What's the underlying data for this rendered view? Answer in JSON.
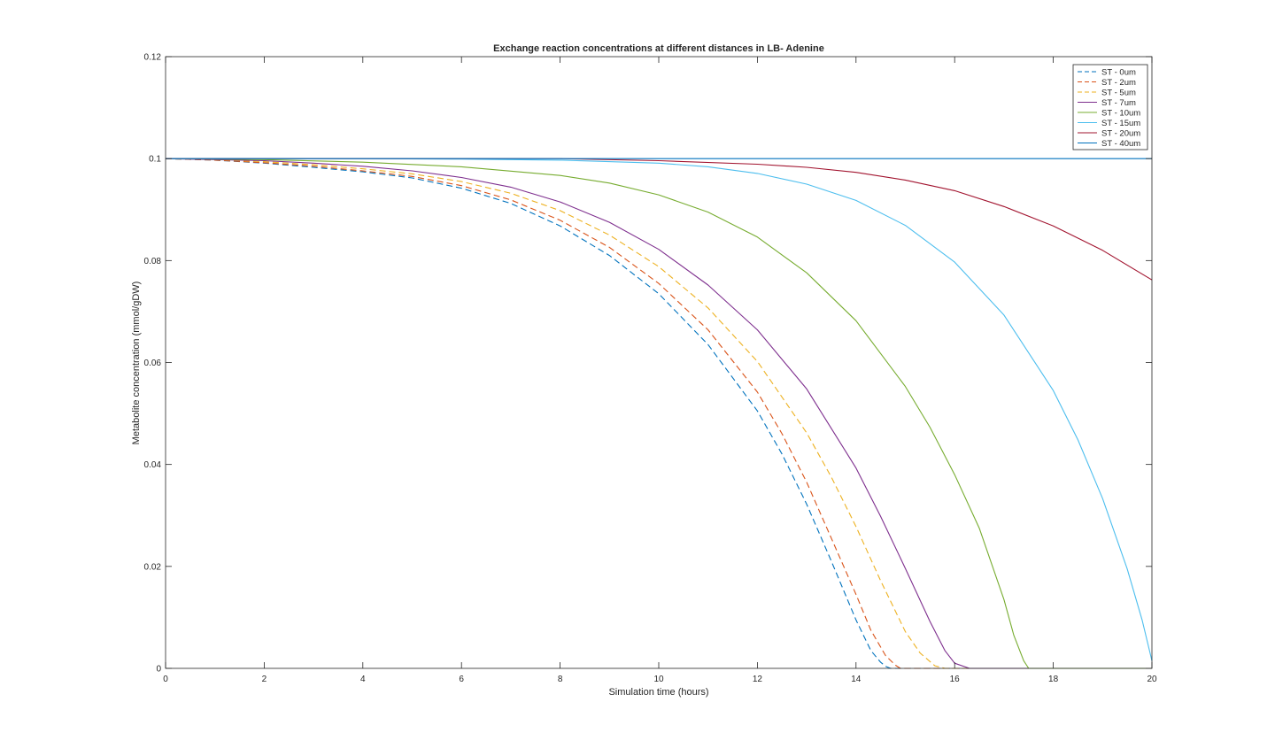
{
  "chart_data": {
    "type": "line",
    "title": "Exchange reaction concentrations at different distances in LB- Adenine",
    "xlabel": "Simulation time (hours)",
    "ylabel": "Metabolite concentration (mmol/gDW)",
    "xlim": [
      0,
      20
    ],
    "ylim": [
      0,
      0.12
    ],
    "xticks": [
      0,
      2,
      4,
      6,
      8,
      10,
      12,
      14,
      16,
      18,
      20
    ],
    "yticks": [
      0,
      0.02,
      0.04,
      0.06,
      0.08,
      0.1,
      0.12
    ],
    "xtick_labels": [
      "0",
      "2",
      "4",
      "6",
      "8",
      "10",
      "12",
      "14",
      "16",
      "18",
      "20"
    ],
    "ytick_labels": [
      "0",
      "0.02",
      "0.04",
      "0.06",
      "0.08",
      "0.1",
      "0.12"
    ],
    "grid": false,
    "legend_position": "top-right",
    "series": [
      {
        "name": "ST - 0um",
        "color": "#0072BD",
        "dash": "dashed",
        "x": [
          0,
          1,
          2,
          3,
          4,
          5,
          6,
          7,
          8,
          9,
          10,
          11,
          12,
          12.5,
          13,
          13.5,
          14,
          14.3,
          14.5,
          14.6,
          14.7,
          20
        ],
        "y": [
          0.1,
          0.0997,
          0.0991,
          0.0983,
          0.0974,
          0.0962,
          0.0942,
          0.0912,
          0.0868,
          0.081,
          0.0735,
          0.0635,
          0.0505,
          0.042,
          0.0322,
          0.021,
          0.0095,
          0.0035,
          0.0012,
          0.0004,
          0,
          0
        ]
      },
      {
        "name": "ST - 2um",
        "color": "#D95319",
        "dash": "dashed",
        "x": [
          0,
          1,
          2,
          3,
          4,
          5,
          6,
          7,
          8,
          9,
          10,
          11,
          12,
          12.5,
          13,
          13.5,
          14,
          14.3,
          14.6,
          14.8,
          14.9,
          20
        ],
        "y": [
          0.1,
          0.0997,
          0.0992,
          0.0985,
          0.0976,
          0.0965,
          0.0947,
          0.0919,
          0.0879,
          0.0826,
          0.0755,
          0.0664,
          0.0542,
          0.046,
          0.0365,
          0.0255,
          0.0145,
          0.0075,
          0.0025,
          0.0006,
          0,
          0
        ]
      },
      {
        "name": "ST - 5um",
        "color": "#EDB120",
        "dash": "dashed",
        "x": [
          0,
          1,
          2,
          3,
          4,
          5,
          6,
          7,
          8,
          9,
          10,
          11,
          12,
          13,
          13.5,
          14,
          14.5,
          15,
          15.3,
          15.6,
          15.8,
          20
        ],
        "y": [
          0.1,
          0.0998,
          0.0994,
          0.0988,
          0.098,
          0.097,
          0.0955,
          0.0932,
          0.0898,
          0.085,
          0.0788,
          0.0707,
          0.0602,
          0.0462,
          0.0375,
          0.0278,
          0.0172,
          0.0072,
          0.003,
          0.0005,
          0,
          0
        ]
      },
      {
        "name": "ST - 7um",
        "color": "#7E2F8E",
        "dash": "solid",
        "x": [
          0,
          1,
          2,
          3,
          4,
          5,
          6,
          7,
          8,
          9,
          10,
          11,
          12,
          13,
          14,
          14.5,
          15,
          15.5,
          15.8,
          16,
          16.3,
          20
        ],
        "y": [
          0.1,
          0.0998,
          0.0996,
          0.0991,
          0.0985,
          0.0976,
          0.0963,
          0.0944,
          0.0915,
          0.0875,
          0.0822,
          0.0752,
          0.0664,
          0.0548,
          0.0393,
          0.0298,
          0.0196,
          0.0092,
          0.0035,
          0.001,
          0,
          0
        ]
      },
      {
        "name": "ST - 10um",
        "color": "#77AC30",
        "dash": "solid",
        "x": [
          0,
          2,
          4,
          6,
          8,
          9,
          10,
          11,
          12,
          13,
          14,
          15,
          15.5,
          16,
          16.5,
          17,
          17.2,
          17.4,
          17.5,
          20
        ],
        "y": [
          0.1,
          0.0998,
          0.0993,
          0.0984,
          0.0967,
          0.0952,
          0.0929,
          0.0895,
          0.0846,
          0.0776,
          0.0682,
          0.0553,
          0.0473,
          0.038,
          0.0275,
          0.0135,
          0.0065,
          0.0015,
          0,
          0
        ]
      },
      {
        "name": "ST - 15um",
        "color": "#4DBEEE",
        "dash": "solid",
        "x": [
          0,
          2,
          4,
          6,
          8,
          10,
          11,
          12,
          13,
          14,
          15,
          16,
          17,
          18,
          18.5,
          19,
          19.5,
          19.8,
          20
        ],
        "y": [
          0.1,
          0.1,
          0.1,
          0.0999,
          0.0997,
          0.0991,
          0.0984,
          0.0971,
          0.095,
          0.0918,
          0.0869,
          0.0797,
          0.0693,
          0.0545,
          0.0448,
          0.0333,
          0.0195,
          0.0095,
          0.0015
        ]
      },
      {
        "name": "ST - 20um",
        "color": "#A2142F",
        "dash": "solid",
        "x": [
          0,
          4,
          8,
          10,
          12,
          13,
          14,
          15,
          16,
          17,
          18,
          19,
          20
        ],
        "y": [
          0.1,
          0.1,
          0.1,
          0.0996,
          0.0989,
          0.0983,
          0.0973,
          0.0958,
          0.0937,
          0.0906,
          0.0868,
          0.082,
          0.0762
        ]
      },
      {
        "name": "ST - 40um",
        "color": "#0072BD",
        "dash": "solid",
        "x": [
          0,
          20
        ],
        "y": [
          0.1,
          0.1
        ]
      }
    ]
  }
}
